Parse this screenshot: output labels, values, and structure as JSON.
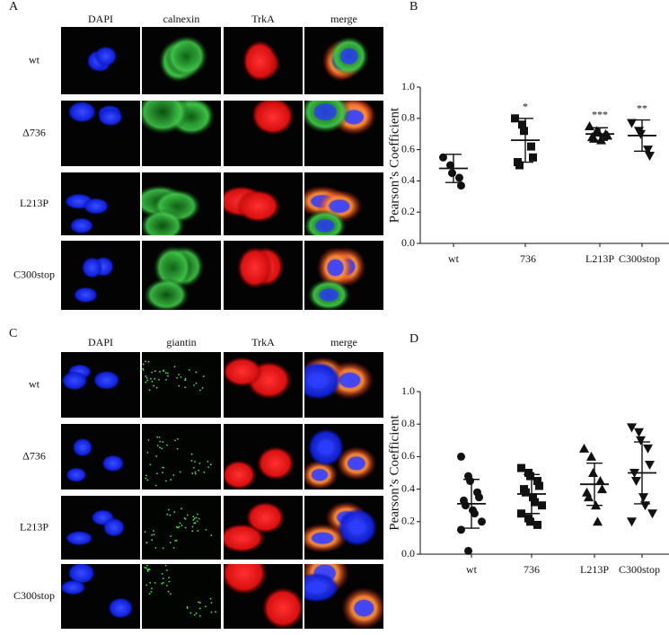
{
  "panels": [
    {
      "label": "A",
      "columns": [
        "DAPI",
        "calnexin",
        "TrkA",
        "merge"
      ],
      "rows": [
        "wt",
        "Δ736",
        "L213P",
        "C300stop"
      ]
    },
    {
      "label": "C",
      "columns": [
        "DAPI",
        "giantin",
        "TrkA",
        "merge"
      ],
      "rows": [
        "wt",
        "Δ736",
        "L213P",
        "C300stop"
      ]
    }
  ],
  "chart_data": [
    {
      "type": "scatter",
      "panel_label": "B",
      "y_label": "Pearson’s Coefficient",
      "color": "#111111",
      "categories": [
        "wt",
        "736",
        "L213P",
        "C300stop"
      ],
      "markers": [
        "circle",
        "square",
        "triangle",
        "triangle-down"
      ],
      "points": [
        [
          0.55,
          0.5,
          0.45,
          0.42,
          0.37
        ],
        [
          0.8,
          0.76,
          0.72,
          0.62,
          0.55,
          0.52,
          0.5
        ],
        [
          0.75,
          0.72,
          0.71,
          0.7,
          0.69,
          0.68,
          0.67,
          0.66
        ],
        [
          0.77,
          0.72,
          0.7,
          0.6,
          0.56
        ]
      ],
      "means": [
        0.48,
        0.66,
        0.7,
        0.69
      ],
      "sds": [
        0.09,
        0.14,
        0.04,
        0.1
      ],
      "significance": [
        null,
        "*",
        "***",
        "**"
      ],
      "ylim": [
        0,
        1
      ],
      "yticks": [
        {
          "value": 0,
          "label": "0.0"
        },
        0.2,
        0.4,
        0.6,
        0.8,
        {
          "value": 1,
          "label": "1.0"
        }
      ]
    },
    {
      "type": "scatter",
      "panel_label": "D",
      "y_label": "Pearson’s Coefficient",
      "color": "#111111",
      "categories": [
        "wt",
        "736",
        "L213P",
        "C300stop"
      ],
      "markers": [
        "circle",
        "square",
        "triangle",
        "triangle-down"
      ],
      "points": [
        [
          0.6,
          0.48,
          0.45,
          0.38,
          0.35,
          0.33,
          0.3,
          0.27,
          0.25,
          0.2,
          0.15,
          0.02
        ],
        [
          0.53,
          0.5,
          0.48,
          0.45,
          0.42,
          0.4,
          0.38,
          0.35,
          0.32,
          0.3,
          0.25,
          0.22,
          0.2,
          0.18
        ],
        [
          0.65,
          0.6,
          0.5,
          0.45,
          0.4,
          0.38,
          0.35,
          0.3,
          0.2
        ],
        [
          0.78,
          0.75,
          0.7,
          0.65,
          0.55,
          0.5,
          0.45,
          0.35,
          0.3,
          0.25,
          0.2
        ]
      ],
      "means": [
        0.31,
        0.37,
        0.43,
        0.5
      ],
      "sds": [
        0.15,
        0.12,
        0.13,
        0.19
      ],
      "significance": [
        null,
        null,
        null,
        null
      ],
      "ylim": [
        0,
        1
      ],
      "yticks": [
        {
          "value": 0,
          "label": "0.0"
        },
        0.2,
        0.4,
        0.6,
        0.8,
        {
          "value": 1,
          "label": "1.0"
        }
      ]
    }
  ]
}
